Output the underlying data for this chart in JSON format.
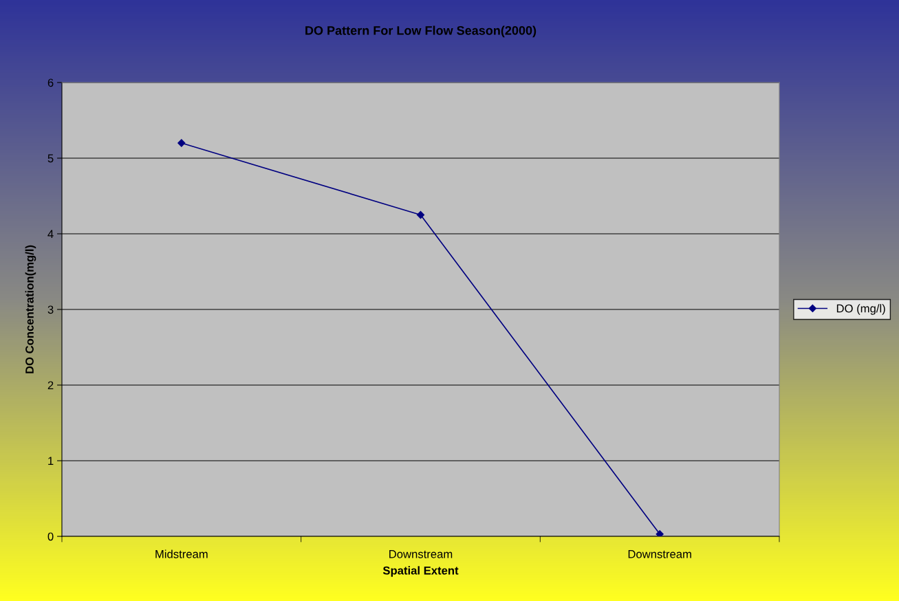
{
  "chart_data": {
    "type": "line",
    "title": "DO Pattern For Low Flow Season(2000)",
    "xlabel": "Spatial Extent",
    "ylabel": "DO Concentration(mg/l)",
    "categories": [
      "Midstream",
      "Downstream",
      "Downstream"
    ],
    "series": [
      {
        "name": "DO (mg/l)",
        "color": "#000080",
        "values": [
          5.2,
          4.25,
          0.03
        ]
      }
    ],
    "ylim": [
      0,
      6
    ],
    "yticks": [
      0,
      1,
      2,
      3,
      4,
      5,
      6
    ],
    "grid": "y",
    "legend": "right",
    "marker": "diamond",
    "line_style": "solid"
  }
}
